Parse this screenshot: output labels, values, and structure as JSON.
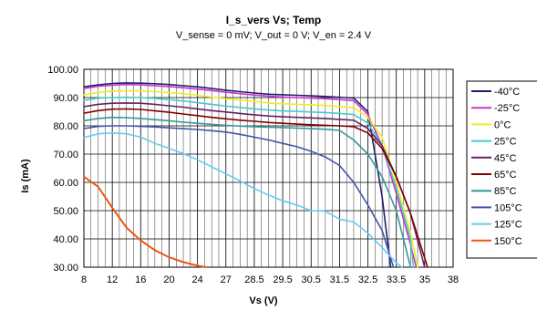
{
  "chart_data": {
    "type": "line",
    "title": "I_s_vers Vs; Temp",
    "subtitle": "V_sense = 0 mV; V_out = 0 V; V_en = 2.4 V",
    "xlabel": "Vs (V)",
    "ylabel": "Is (mA)",
    "ylim": [
      30,
      100
    ],
    "yticks": [
      "30.00",
      "40.00",
      "50.00",
      "60.00",
      "70.00",
      "80.00",
      "90.00",
      "100.00"
    ],
    "x": [
      "8",
      "12",
      "16",
      "20",
      "24",
      "27",
      "28.5",
      "29.5",
      "30.5",
      "31.5",
      "32.5",
      "33.5",
      "35",
      "38"
    ],
    "grid": true,
    "legend_position": "right",
    "series": [
      {
        "name": "-40°C",
        "color": "#1f1f6f",
        "points": [
          [
            0,
            93.8
          ],
          [
            0.5,
            94.5
          ],
          [
            1,
            95.0
          ],
          [
            1.5,
            95.2
          ],
          [
            2,
            95.1
          ],
          [
            2.5,
            94.9
          ],
          [
            3,
            94.6
          ],
          [
            3.5,
            94.2
          ],
          [
            4,
            93.8
          ],
          [
            4.5,
            93.2
          ],
          [
            5,
            92.6
          ],
          [
            5.5,
            92.1
          ],
          [
            6,
            91.6
          ],
          [
            6.5,
            91.2
          ],
          [
            7,
            91.0
          ],
          [
            7.5,
            90.8
          ],
          [
            8,
            90.6
          ],
          [
            8.5,
            90.4
          ],
          [
            9,
            90.1
          ],
          [
            9.5,
            89.8
          ],
          [
            10,
            85.0
          ],
          [
            10.5,
            55.0
          ],
          [
            10.8,
            30.0
          ]
        ]
      },
      {
        "name": "-25°C",
        "color": "#cc33cc",
        "points": [
          [
            0,
            93.2
          ],
          [
            0.5,
            94.0
          ],
          [
            1,
            94.4
          ],
          [
            1.5,
            94.6
          ],
          [
            2,
            94.5
          ],
          [
            2.5,
            94.2
          ],
          [
            3,
            93.9
          ],
          [
            3.5,
            93.5
          ],
          [
            4,
            93.0
          ],
          [
            4.5,
            92.5
          ],
          [
            5,
            91.9
          ],
          [
            5.5,
            91.4
          ],
          [
            6,
            90.9
          ],
          [
            6.5,
            90.5
          ],
          [
            7,
            90.2
          ],
          [
            7.5,
            90.0
          ],
          [
            8,
            89.8
          ],
          [
            8.5,
            89.6
          ],
          [
            9,
            89.3
          ],
          [
            9.5,
            88.9
          ],
          [
            10,
            84.0
          ],
          [
            10.5,
            73.0
          ],
          [
            11,
            56.0
          ],
          [
            11.5,
            38.0
          ],
          [
            11.7,
            30.0
          ]
        ]
      },
      {
        "name": "0°C",
        "color": "#eeee22",
        "points": [
          [
            0,
            91.0
          ],
          [
            0.5,
            91.8
          ],
          [
            1,
            92.3
          ],
          [
            1.5,
            92.4
          ],
          [
            2,
            92.4
          ],
          [
            2.5,
            92.1
          ],
          [
            3,
            91.8
          ],
          [
            3.5,
            91.4
          ],
          [
            4,
            90.8
          ],
          [
            4.5,
            90.2
          ],
          [
            5,
            89.6
          ],
          [
            5.5,
            89.1
          ],
          [
            6,
            88.6
          ],
          [
            6.5,
            88.1
          ],
          [
            7,
            87.8
          ],
          [
            7.5,
            87.6
          ],
          [
            8,
            87.4
          ],
          [
            8.5,
            87.2
          ],
          [
            9,
            86.8
          ],
          [
            9.5,
            86.5
          ],
          [
            10,
            83.0
          ],
          [
            10.5,
            76.0
          ],
          [
            11,
            60.0
          ],
          [
            11.5,
            42.0
          ],
          [
            11.75,
            30.0
          ]
        ]
      },
      {
        "name": "25°C",
        "color": "#44cccc",
        "points": [
          [
            0,
            89.0
          ],
          [
            0.5,
            89.8
          ],
          [
            1,
            90.0
          ],
          [
            1.5,
            90.1
          ],
          [
            2,
            90.0
          ],
          [
            2.5,
            89.7
          ],
          [
            3,
            89.3
          ],
          [
            3.5,
            88.8
          ],
          [
            4,
            88.2
          ],
          [
            4.5,
            87.6
          ],
          [
            5,
            87.0
          ],
          [
            5.5,
            86.5
          ],
          [
            6,
            86.0
          ],
          [
            6.5,
            85.6
          ],
          [
            7,
            85.3
          ],
          [
            7.5,
            85.1
          ],
          [
            8,
            84.9
          ],
          [
            8.5,
            84.7
          ],
          [
            9,
            84.4
          ],
          [
            9.5,
            84.0
          ],
          [
            10,
            81.0
          ],
          [
            10.5,
            73.0
          ],
          [
            11,
            58.0
          ],
          [
            11.5,
            40.0
          ],
          [
            11.6,
            30.0
          ]
        ]
      },
      {
        "name": "45°C",
        "color": "#662266",
        "points": [
          [
            0,
            86.8
          ],
          [
            0.5,
            87.6
          ],
          [
            1,
            88.0
          ],
          [
            1.5,
            88.1
          ],
          [
            2,
            88.0
          ],
          [
            2.5,
            87.6
          ],
          [
            3,
            87.1
          ],
          [
            3.5,
            86.6
          ],
          [
            4,
            86.0
          ],
          [
            4.5,
            85.4
          ],
          [
            5,
            84.9
          ],
          [
            5.5,
            84.4
          ],
          [
            6,
            83.9
          ],
          [
            6.5,
            83.5
          ],
          [
            7,
            83.2
          ],
          [
            7.5,
            83.0
          ],
          [
            8,
            82.8
          ],
          [
            8.5,
            82.6
          ],
          [
            9,
            82.3
          ],
          [
            9.5,
            82.0
          ],
          [
            10,
            79.0
          ],
          [
            10.5,
            73.0
          ],
          [
            11,
            62.0
          ],
          [
            11.5,
            49.0
          ],
          [
            12,
            30.0
          ]
        ]
      },
      {
        "name": "65°C",
        "color": "#800000",
        "points": [
          [
            0,
            84.5
          ],
          [
            0.5,
            85.4
          ],
          [
            1,
            85.9
          ],
          [
            1.5,
            86.0
          ],
          [
            2,
            85.8
          ],
          [
            2.5,
            85.3
          ],
          [
            3,
            84.8
          ],
          [
            3.5,
            84.2
          ],
          [
            4,
            83.6
          ],
          [
            4.5,
            83.0
          ],
          [
            5,
            82.5
          ],
          [
            5.5,
            82.0
          ],
          [
            6,
            81.6
          ],
          [
            6.5,
            81.2
          ],
          [
            7,
            80.9
          ],
          [
            7.5,
            80.6
          ],
          [
            8,
            80.4
          ],
          [
            8.5,
            80.2
          ],
          [
            9,
            80.0
          ],
          [
            9.5,
            79.7
          ],
          [
            10,
            77.5
          ],
          [
            10.5,
            72.0
          ],
          [
            11,
            62.0
          ],
          [
            11.5,
            49.0
          ],
          [
            12.1,
            30.0
          ]
        ]
      },
      {
        "name": "85°C",
        "color": "#339999",
        "points": [
          [
            0,
            81.8
          ],
          [
            0.5,
            82.6
          ],
          [
            1,
            83.0
          ],
          [
            1.5,
            82.9
          ],
          [
            2,
            82.6
          ],
          [
            2.5,
            82.2
          ],
          [
            3,
            81.8
          ],
          [
            3.5,
            81.3
          ],
          [
            4,
            80.9
          ],
          [
            4.5,
            80.5
          ],
          [
            5,
            80.2
          ],
          [
            5.5,
            79.9
          ],
          [
            6,
            79.7
          ],
          [
            6.5,
            79.5
          ],
          [
            7,
            79.4
          ],
          [
            7.5,
            79.2
          ],
          [
            8,
            79.0
          ],
          [
            8.5,
            78.8
          ],
          [
            9,
            78.4
          ],
          [
            9.5,
            75.0
          ],
          [
            10,
            70.0
          ],
          [
            10.5,
            62.0
          ],
          [
            11,
            50.0
          ],
          [
            11.5,
            30.0
          ]
        ]
      },
      {
        "name": "105°C",
        "color": "#4455aa",
        "points": [
          [
            0,
            79.0
          ],
          [
            0.5,
            79.8
          ],
          [
            1,
            80.0
          ],
          [
            1.5,
            80.0
          ],
          [
            2,
            79.8
          ],
          [
            2.5,
            79.6
          ],
          [
            3,
            79.3
          ],
          [
            3.5,
            79.0
          ],
          [
            4,
            78.7
          ],
          [
            4.5,
            78.3
          ],
          [
            5,
            77.8
          ],
          [
            5.5,
            77.0
          ],
          [
            6,
            76.0
          ],
          [
            6.5,
            75.0
          ],
          [
            7,
            73.8
          ],
          [
            7.5,
            72.6
          ],
          [
            8,
            71.0
          ],
          [
            8.5,
            69.0
          ],
          [
            9,
            66.0
          ],
          [
            9.5,
            60.0
          ],
          [
            10,
            52.0
          ],
          [
            10.5,
            43.0
          ],
          [
            10.9,
            30.0
          ]
        ]
      },
      {
        "name": "125°C",
        "color": "#66ccee",
        "points": [
          [
            0,
            75.8
          ],
          [
            0.5,
            77.2
          ],
          [
            1,
            77.5
          ],
          [
            1.5,
            77.2
          ],
          [
            2,
            76.0
          ],
          [
            2.5,
            73.8
          ],
          [
            3,
            72.0
          ],
          [
            3.5,
            70.2
          ],
          [
            4,
            68.0
          ],
          [
            4.5,
            65.5
          ],
          [
            5,
            63.0
          ],
          [
            5.5,
            60.5
          ],
          [
            6,
            57.8
          ],
          [
            6.5,
            55.5
          ],
          [
            7,
            53.5
          ],
          [
            7.5,
            52.0
          ],
          [
            8,
            50.0
          ],
          [
            8.5,
            49.8
          ],
          [
            9,
            47.0
          ],
          [
            9.5,
            46.0
          ],
          [
            10,
            42.0
          ],
          [
            10.5,
            37.0
          ],
          [
            11,
            31.5
          ],
          [
            11.2,
            30.0
          ]
        ]
      },
      {
        "name": "150°C",
        "color": "#ee5511",
        "points": [
          [
            0,
            62.0
          ],
          [
            0.5,
            58.5
          ],
          [
            1,
            51.0
          ],
          [
            1.5,
            44.0
          ],
          [
            2,
            39.5
          ],
          [
            2.5,
            36.0
          ],
          [
            3,
            33.5
          ],
          [
            3.5,
            31.8
          ],
          [
            4,
            30.5
          ],
          [
            4.3,
            30.0
          ]
        ]
      }
    ]
  }
}
